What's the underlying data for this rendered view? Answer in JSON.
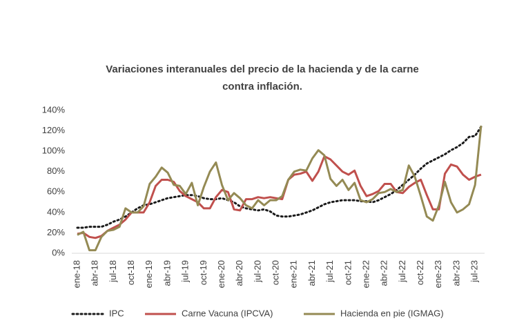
{
  "chart_data": {
    "type": "line",
    "title": [
      "Variaciones interanuales del precio de la hacienda y de la carne",
      "contra inflación."
    ],
    "categories": [
      "ene-18",
      null,
      null,
      "abr-18",
      null,
      null,
      "jul-18",
      null,
      null,
      "oct-18",
      null,
      null,
      "ene-19",
      null,
      null,
      "abr-19",
      null,
      null,
      "jul-19",
      null,
      null,
      "oct-19",
      null,
      null,
      "ene-20",
      null,
      null,
      "abr-20",
      null,
      null,
      "jul-20",
      null,
      null,
      "oct-20",
      null,
      null,
      "ene-21",
      null,
      null,
      "abr-21",
      null,
      null,
      "jul-21",
      null,
      null,
      "oct-21",
      null,
      null,
      "ene-22",
      null,
      null,
      "abr-22",
      null,
      null,
      "jul-22",
      null,
      null,
      "oct-22",
      null,
      null,
      "ene-23",
      null,
      null,
      "abr-23",
      null,
      null,
      "jul-23",
      null
    ],
    "series": [
      {
        "name": "IPC",
        "color": "#1a1a1a",
        "dash": "dotted",
        "values": [
          25,
          25,
          26,
          26,
          26,
          28,
          31,
          33,
          36,
          40,
          44,
          47,
          48,
          50,
          52,
          54,
          55,
          56,
          57,
          57,
          56,
          54,
          53,
          53,
          54,
          52,
          50,
          46,
          44,
          43,
          42,
          43,
          41,
          37,
          36,
          36,
          37,
          38,
          40,
          42,
          45,
          48,
          50,
          51,
          52,
          52,
          52,
          51,
          51,
          50,
          52,
          55,
          58,
          62,
          67,
          72,
          77,
          83,
          88,
          91,
          94,
          97,
          101,
          104,
          108,
          114,
          115,
          124
        ]
      },
      {
        "name": "Carne Vacuna (IPCVA)",
        "color": "#c0504d",
        "dash": "solid",
        "values": [
          19,
          20,
          16,
          15,
          17,
          22,
          25,
          28,
          33,
          40,
          40,
          40,
          50,
          66,
          72,
          72,
          70,
          61,
          56,
          53,
          50,
          44,
          44,
          55,
          62,
          60,
          43,
          42,
          53,
          53,
          55,
          54,
          55,
          54,
          53,
          72,
          77,
          78,
          80,
          71,
          80,
          95,
          92,
          86,
          80,
          77,
          81,
          66,
          56,
          58,
          61,
          68,
          68,
          60,
          59,
          65,
          69,
          72,
          57,
          43,
          43,
          78,
          87,
          85,
          77,
          72,
          75,
          77
        ]
      },
      {
        "name": "Hacienda en pie (IGMAG)",
        "color": "#948a54",
        "dash": "solid",
        "values": [
          18,
          21,
          3,
          3,
          16,
          22,
          23,
          26,
          44,
          40,
          40,
          46,
          68,
          75,
          84,
          79,
          67,
          66,
          58,
          69,
          47,
          65,
          80,
          89,
          67,
          52,
          59,
          54,
          47,
          44,
          52,
          47,
          52,
          52,
          56,
          72,
          80,
          82,
          81,
          93,
          101,
          96,
          73,
          66,
          72,
          62,
          69,
          52,
          50,
          53,
          59,
          60,
          63,
          60,
          62,
          86,
          75,
          56,
          36,
          32,
          47,
          70,
          50,
          40,
          43,
          48,
          67,
          125
        ]
      }
    ],
    "ylim": [
      0,
      140
    ],
    "yticks": [
      {
        "value": 0,
        "label": "0%"
      },
      {
        "value": 20,
        "label": "20%"
      },
      {
        "value": 40,
        "label": "40%"
      },
      {
        "value": 60,
        "label": "60%"
      },
      {
        "value": 80,
        "label": "80%"
      },
      {
        "value": 100,
        "label": "100%"
      },
      {
        "value": 120,
        "label": "120%"
      },
      {
        "value": 140,
        "label": "140%"
      }
    ],
    "grid": false,
    "legend": "bottom"
  }
}
